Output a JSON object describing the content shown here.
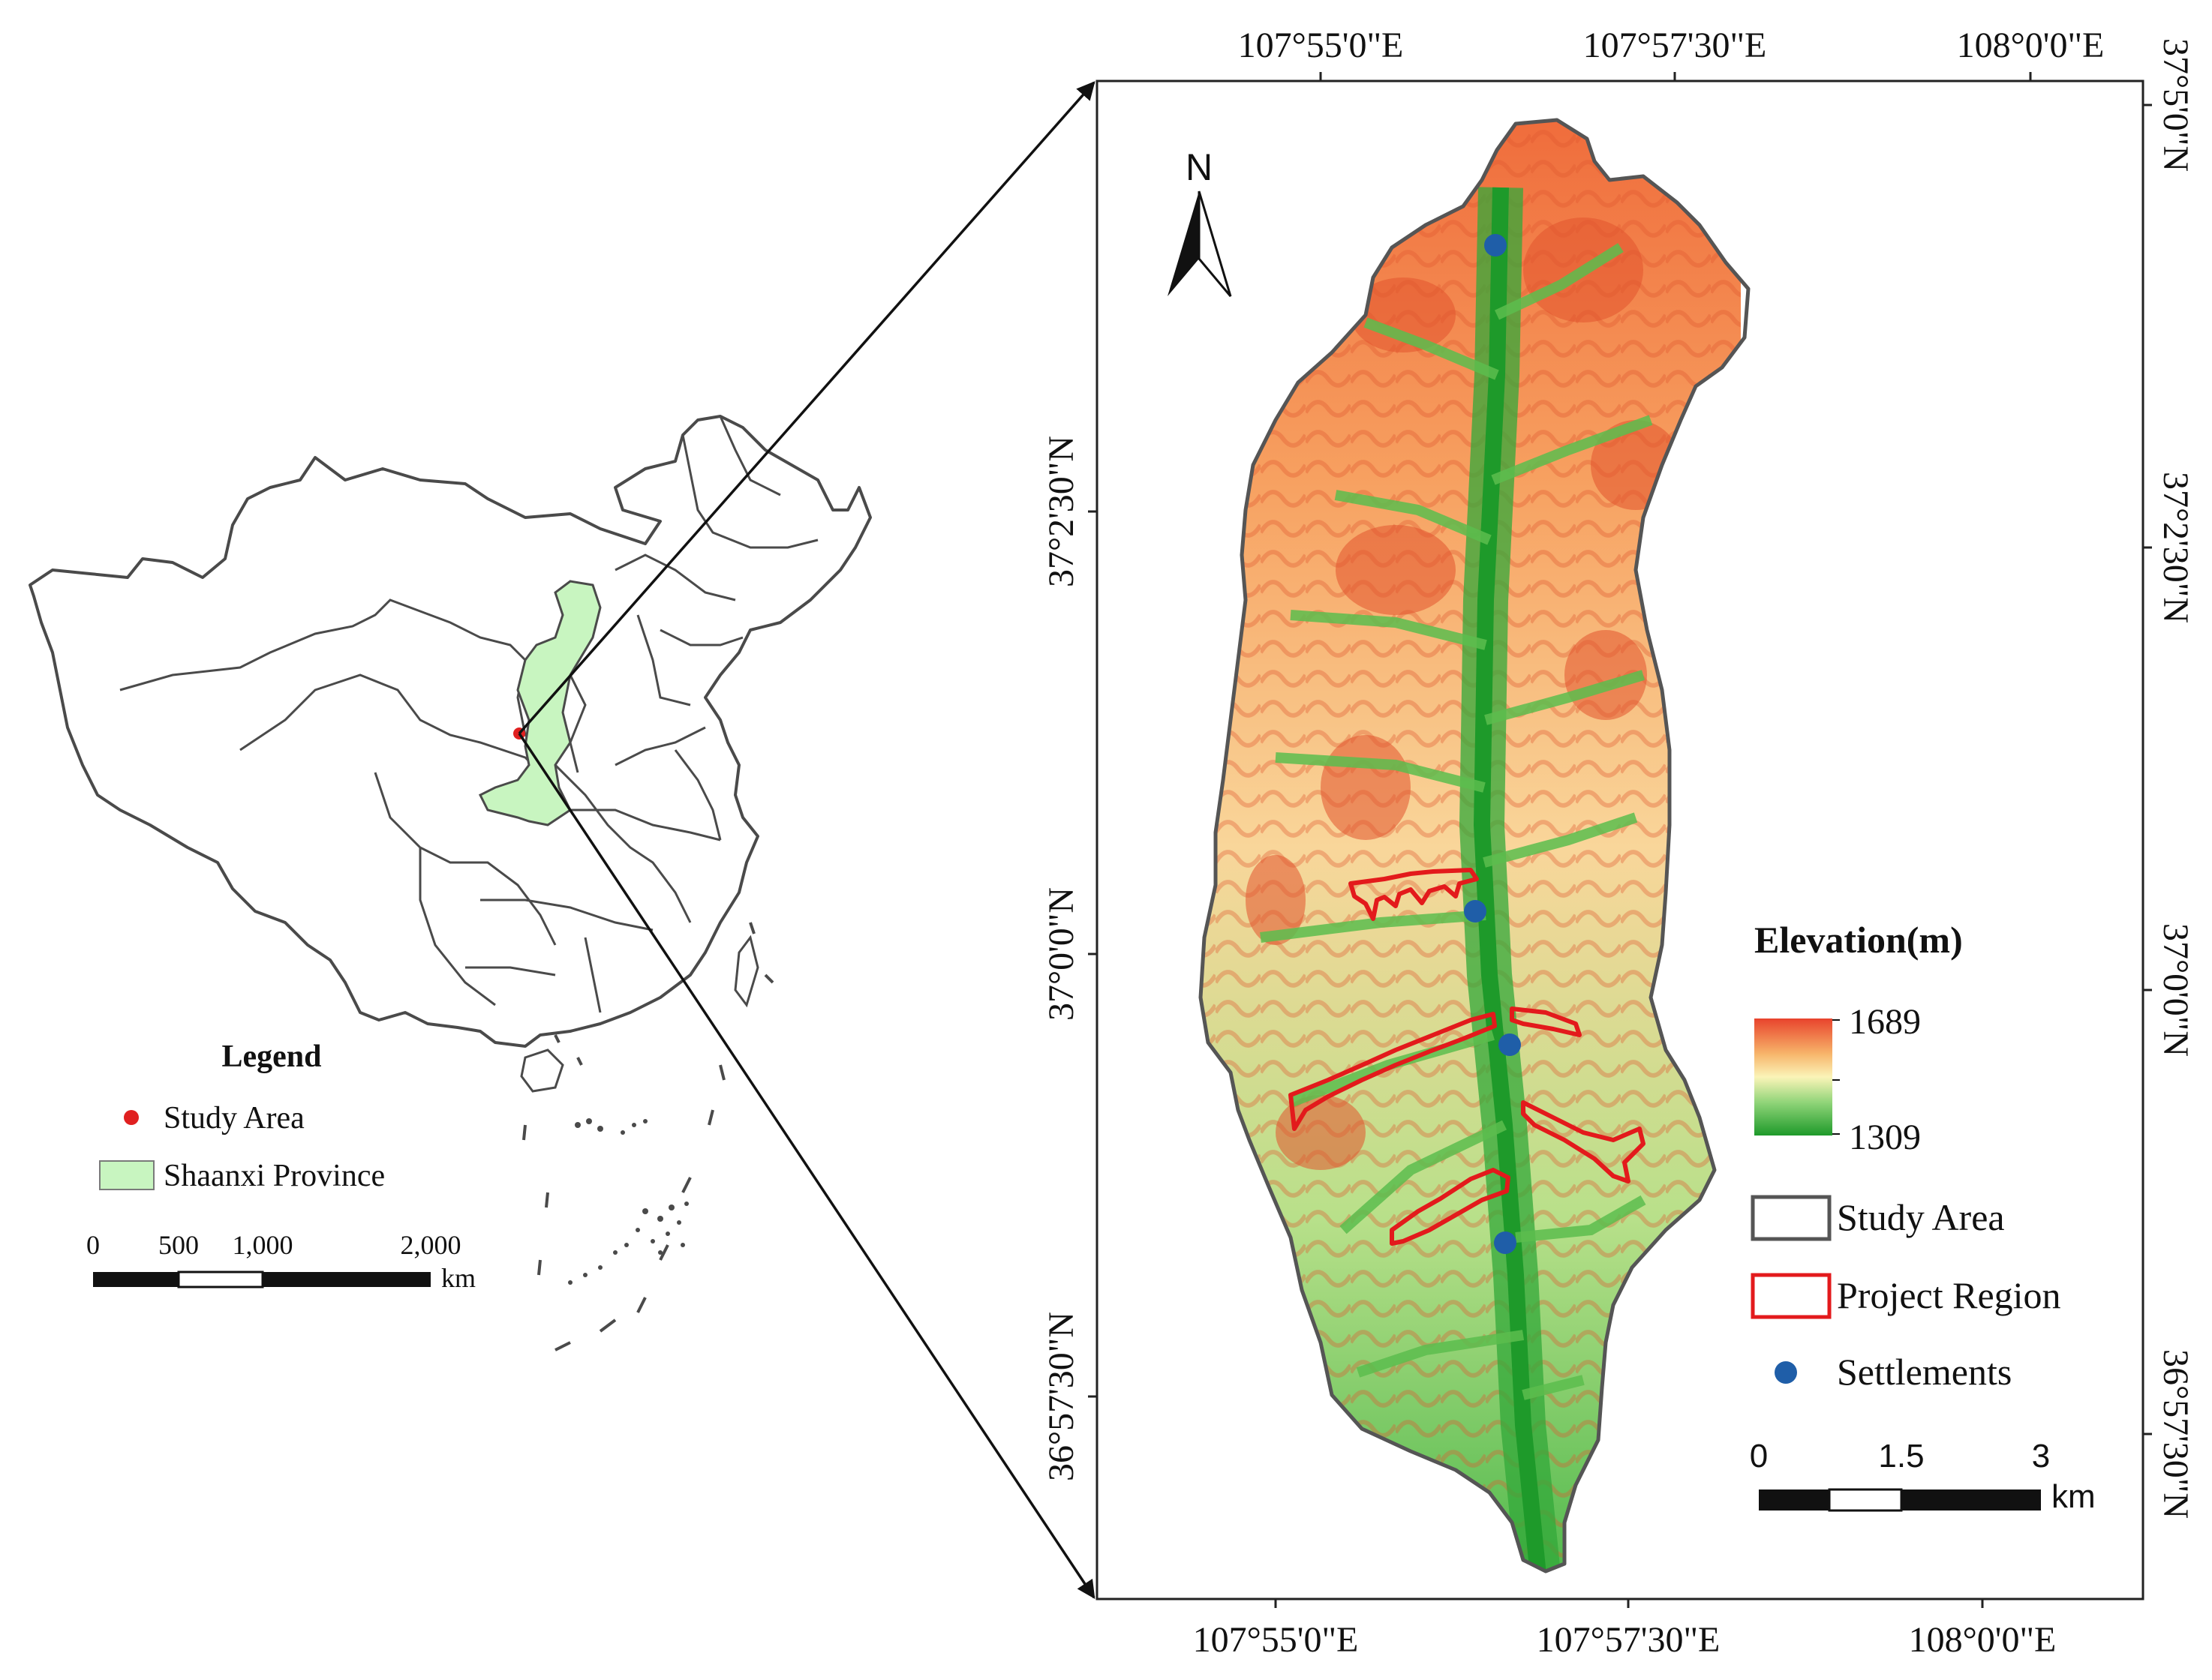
{
  "china_map": {
    "legend": {
      "title": "Legend",
      "items": [
        {
          "label": "Study Area",
          "symbol": "red-dot",
          "color": "#e02020"
        },
        {
          "label": "Shaanxi Province",
          "symbol": "green-box",
          "color": "#c8f5c0"
        }
      ]
    },
    "scalebar": {
      "ticks": [
        "0",
        "500",
        "1,000",
        "2,000"
      ],
      "unit": "km"
    }
  },
  "detail_map": {
    "top_labels": [
      "107°55'0\"E",
      "107°57'30\"E",
      "108°0'0\"E"
    ],
    "bottom_labels": [
      "107°55'0\"E",
      "107°57'30\"E",
      "108°0'0\"E"
    ],
    "left_labels": [
      "37°2'30\"N",
      "37°0'0\"N",
      "36°57'30\"N"
    ],
    "right_labels": [
      "37°5'0\"N",
      "37°2'30\"N",
      "37°0'0\"N",
      "36°57'30\"N"
    ],
    "north_label": "N",
    "legend": {
      "title": "Elevation(m)",
      "elev_max": "1689",
      "elev_min": "1309",
      "ramp_colors": [
        "#e8432c",
        "#f7b46a",
        "#fbf4b8",
        "#8fd478",
        "#1e9a2a"
      ],
      "items": [
        {
          "label": "Study Area",
          "color": "#555555"
        },
        {
          "label": "Project Region",
          "color": "#e31a1c"
        },
        {
          "label": "Settlements",
          "color": "#1f5ea8"
        }
      ]
    },
    "scalebar": {
      "ticks": [
        "0",
        "1.5",
        "3"
      ],
      "unit": "km"
    }
  }
}
